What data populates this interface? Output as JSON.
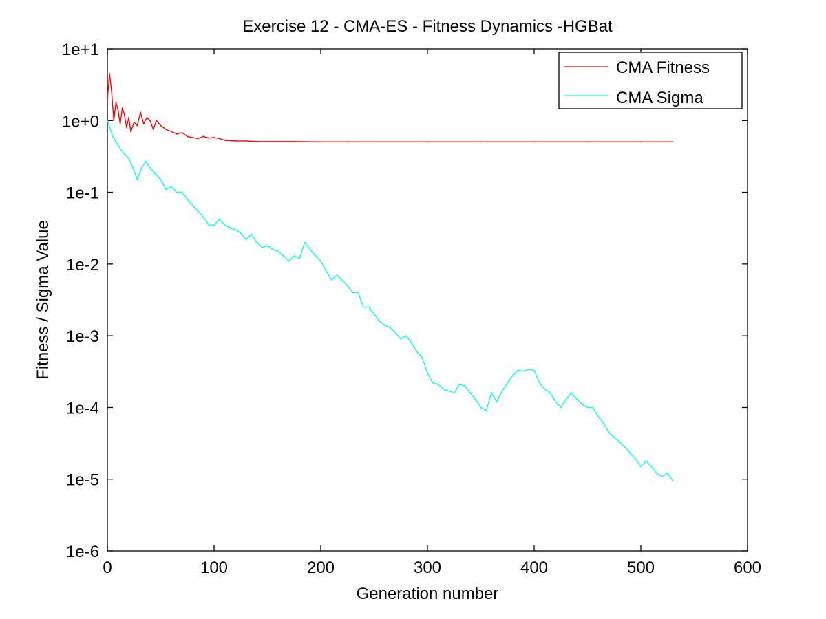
{
  "chart_data": {
    "type": "line",
    "title": "Exercise 12 - CMA-ES - Fitness Dynamics -HGBat",
    "xlabel": "Generation number",
    "ylabel": "Fitness / Sigma Value",
    "xlim": [
      0,
      600
    ],
    "ylim": [
      1e-06,
      10
    ],
    "yscale": "log",
    "grid": false,
    "legend_position": "top-right",
    "x_ticks": [
      {
        "value": 0,
        "label": "0"
      },
      {
        "value": 100,
        "label": "100"
      },
      {
        "value": 200,
        "label": "200"
      },
      {
        "value": 300,
        "label": "300"
      },
      {
        "value": 400,
        "label": "400"
      },
      {
        "value": 500,
        "label": "500"
      },
      {
        "value": 600,
        "label": "600"
      }
    ],
    "y_ticks": [
      {
        "value": 10,
        "label": "1e+1"
      },
      {
        "value": 1,
        "label": "1e+0"
      },
      {
        "value": 0.1,
        "label": "1e-1"
      },
      {
        "value": 0.01,
        "label": "1e-2"
      },
      {
        "value": 0.001,
        "label": "1e-3"
      },
      {
        "value": 0.0001,
        "label": "1e-4"
      },
      {
        "value": 1e-05,
        "label": "1e-5"
      },
      {
        "value": 1e-06,
        "label": "1e-6"
      }
    ],
    "series": [
      {
        "name": "CMA Fitness",
        "color": "#ff0000",
        "x": [
          0,
          2,
          4,
          6,
          8,
          10,
          12,
          14,
          16,
          18,
          20,
          22,
          25,
          28,
          31,
          34,
          37,
          40,
          43,
          46,
          50,
          55,
          60,
          65,
          70,
          75,
          80,
          85,
          90,
          95,
          100,
          105,
          110,
          120,
          130,
          140,
          150,
          175,
          200,
          225,
          250,
          300,
          350,
          400,
          450,
          500,
          530
        ],
        "y": [
          2.0,
          4.5,
          2.5,
          1.0,
          1.8,
          1.4,
          0.9,
          1.5,
          1.2,
          0.8,
          1.1,
          0.7,
          0.95,
          0.85,
          1.3,
          0.9,
          1.1,
          1.0,
          0.75,
          1.0,
          0.85,
          0.75,
          0.7,
          0.65,
          0.68,
          0.6,
          0.58,
          0.56,
          0.6,
          0.57,
          0.58,
          0.56,
          0.53,
          0.52,
          0.52,
          0.51,
          0.51,
          0.51,
          0.505,
          0.505,
          0.505,
          0.505,
          0.505,
          0.505,
          0.505,
          0.505,
          0.505
        ]
      },
      {
        "name": "CMA Sigma",
        "color": "#00ffff",
        "x": [
          0,
          5,
          10,
          15,
          20,
          25,
          28,
          32,
          36,
          40,
          45,
          50,
          55,
          60,
          65,
          70,
          75,
          80,
          90,
          95,
          100,
          105,
          110,
          115,
          120,
          125,
          130,
          135,
          140,
          145,
          150,
          155,
          160,
          165,
          170,
          175,
          180,
          185,
          190,
          195,
          200,
          205,
          210,
          215,
          220,
          225,
          230,
          235,
          240,
          245,
          250,
          255,
          260,
          265,
          270,
          275,
          280,
          285,
          290,
          295,
          300,
          305,
          310,
          315,
          320,
          325,
          330,
          335,
          340,
          345,
          350,
          355,
          360,
          365,
          370,
          375,
          380,
          385,
          390,
          395,
          400,
          405,
          410,
          415,
          420,
          425,
          430,
          435,
          440,
          445,
          450,
          455,
          460,
          465,
          470,
          475,
          480,
          485,
          490,
          495,
          500,
          505,
          510,
          515,
          520,
          525,
          530
        ],
        "y": [
          1.0,
          0.6,
          0.45,
          0.35,
          0.3,
          0.2,
          0.15,
          0.22,
          0.27,
          0.22,
          0.18,
          0.15,
          0.11,
          0.12,
          0.1,
          0.1,
          0.08,
          0.065,
          0.045,
          0.035,
          0.035,
          0.042,
          0.035,
          0.032,
          0.03,
          0.027,
          0.022,
          0.026,
          0.02,
          0.017,
          0.018,
          0.016,
          0.015,
          0.013,
          0.011,
          0.013,
          0.012,
          0.02,
          0.016,
          0.013,
          0.011,
          0.008,
          0.006,
          0.007,
          0.006,
          0.005,
          0.004,
          0.004,
          0.0025,
          0.0025,
          0.002,
          0.0016,
          0.0014,
          0.0013,
          0.0011,
          0.0009,
          0.001,
          0.0008,
          0.0006,
          0.0005,
          0.0003,
          0.00022,
          0.00021,
          0.00018,
          0.00017,
          0.00016,
          0.00021,
          0.0002,
          0.00016,
          0.00013,
          0.0001,
          9e-05,
          0.00016,
          0.00012,
          0.00017,
          0.00022,
          0.00028,
          0.00033,
          0.00032,
          0.00034,
          0.00033,
          0.00022,
          0.00018,
          0.00016,
          0.00012,
          0.0001,
          0.00013,
          0.00016,
          0.00013,
          0.00011,
          0.0001,
          0.0001,
          7.5e-05,
          6e-05,
          4.5e-05,
          3.8e-05,
          3.3e-05,
          2.8e-05,
          2.3e-05,
          1.9e-05,
          1.5e-05,
          1.8e-05,
          1.5e-05,
          1.2e-05,
          1.1e-05,
          1.2e-05,
          9.5e-06
        ]
      }
    ]
  }
}
